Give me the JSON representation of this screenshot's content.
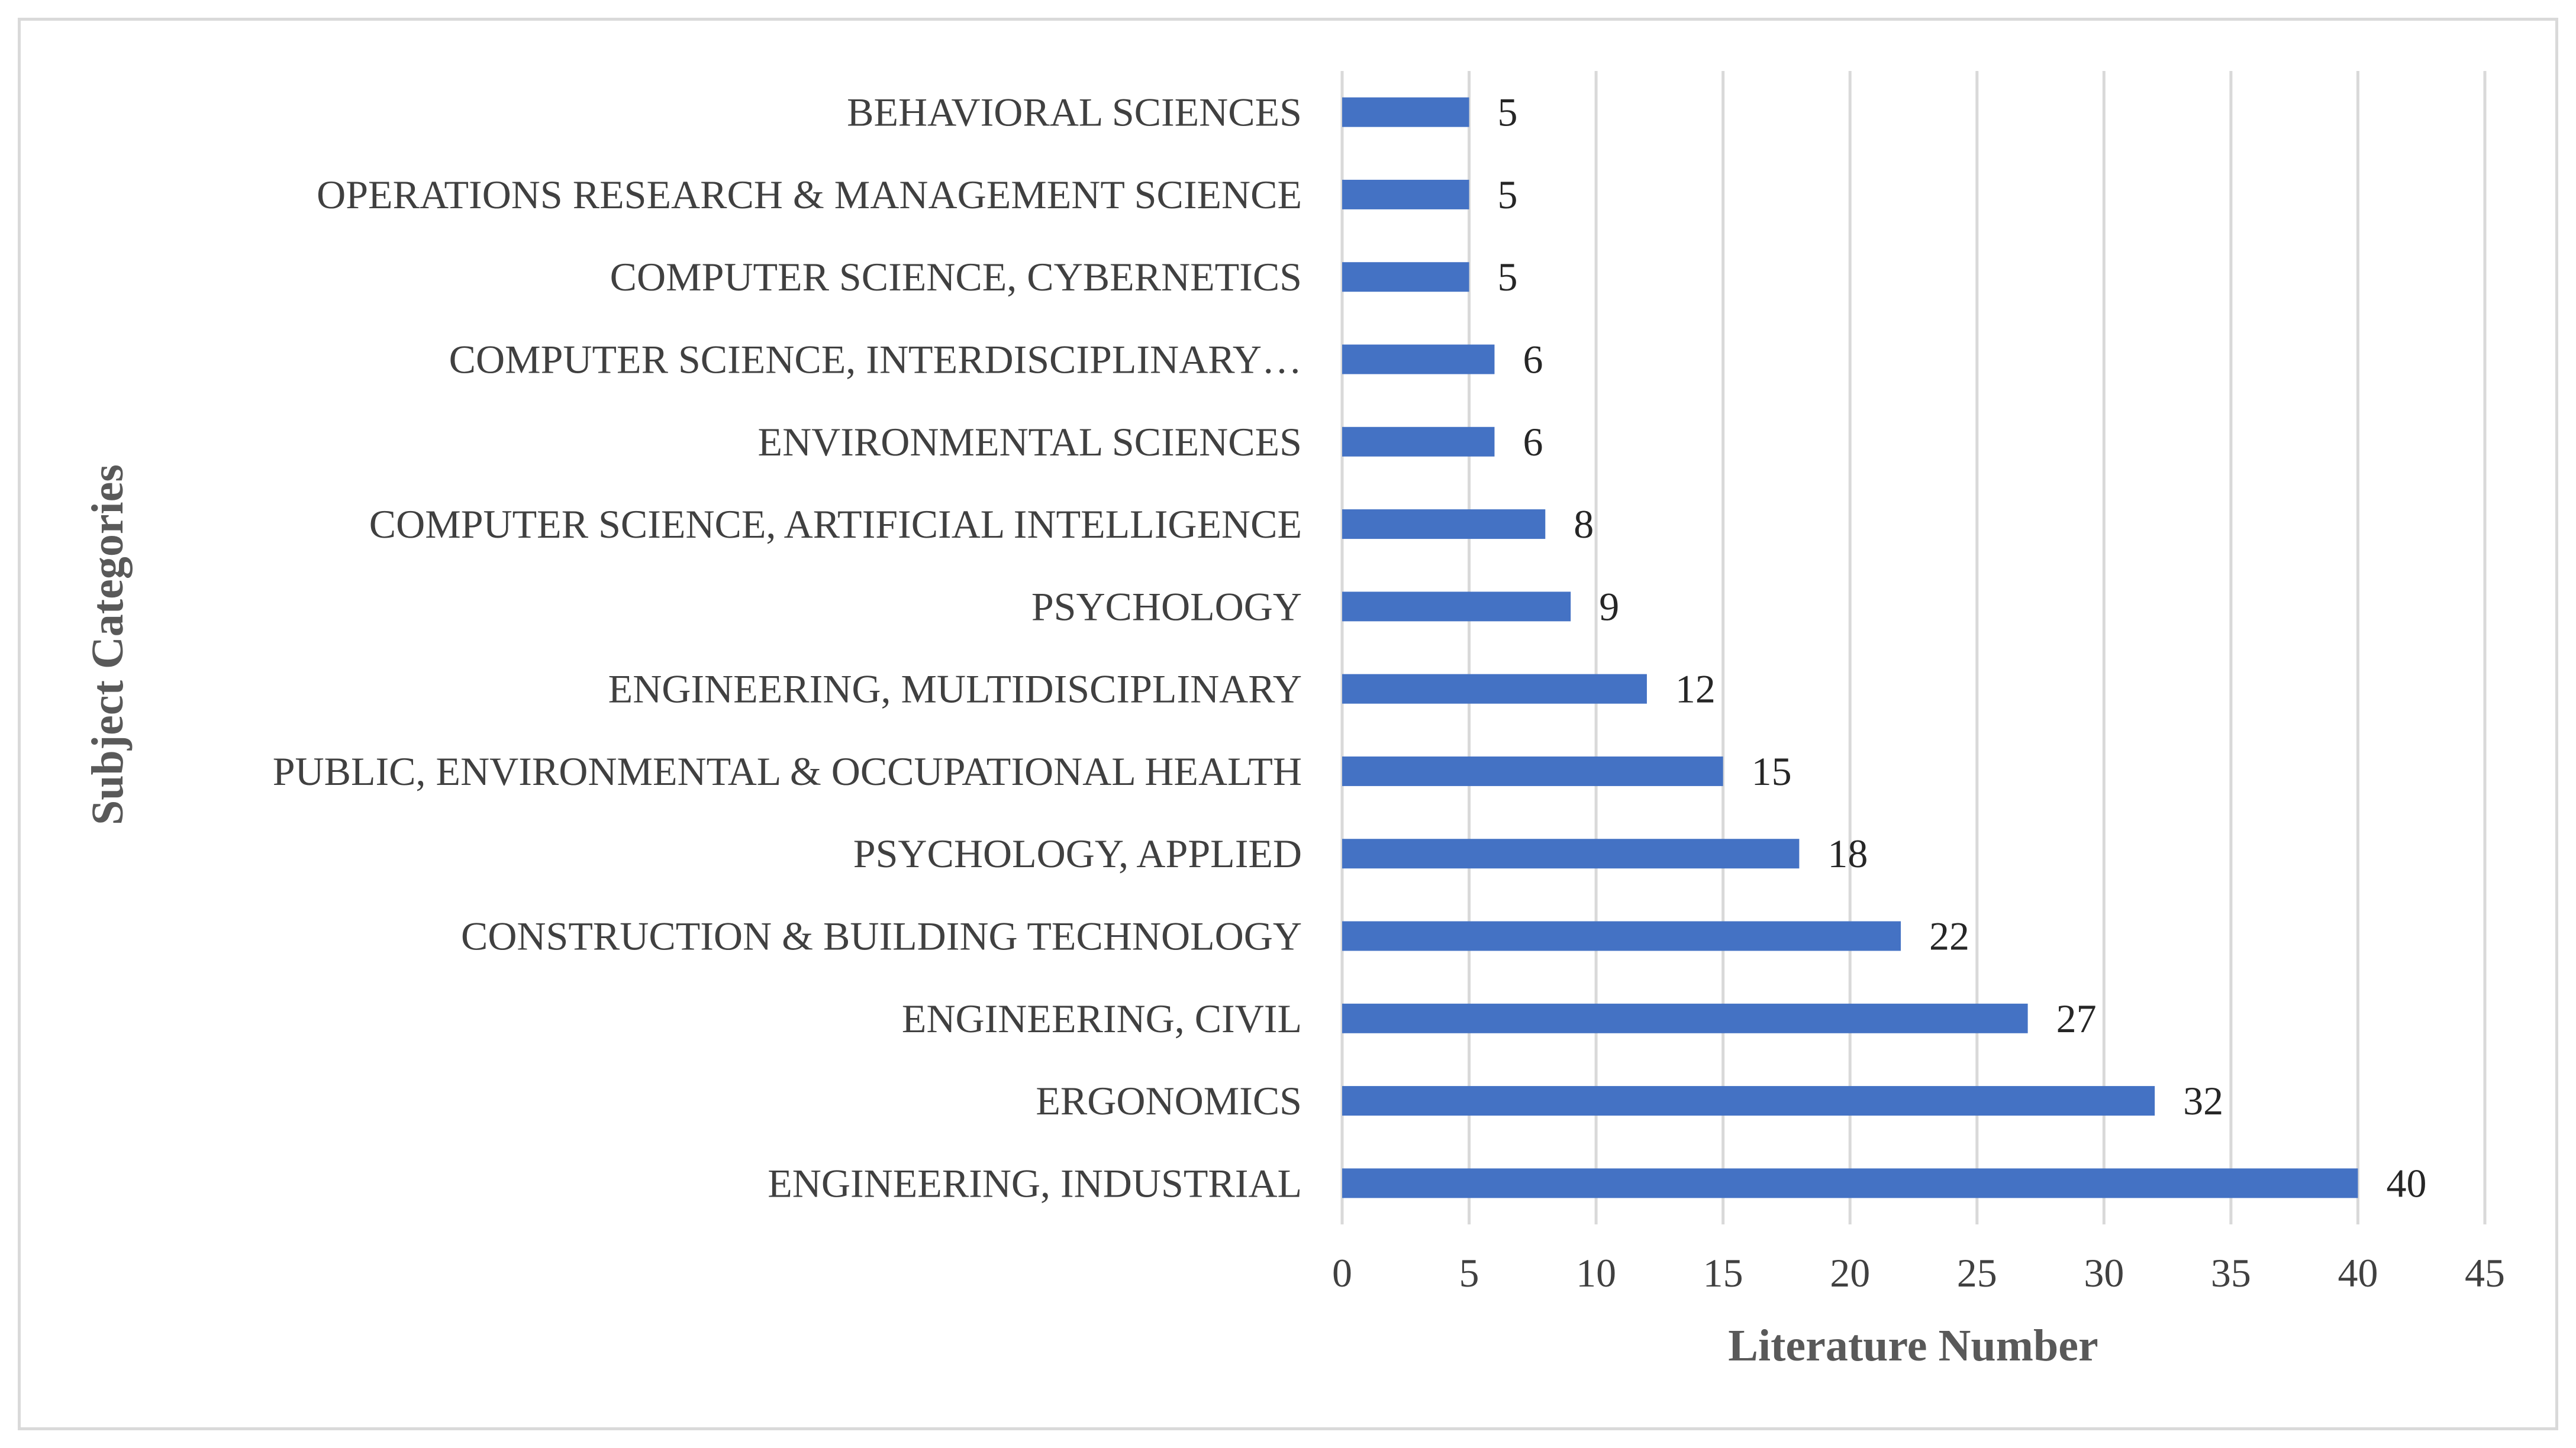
{
  "chart_data": {
    "type": "bar",
    "orientation": "horizontal",
    "title": "",
    "xlabel": "Literature Number",
    "ylabel": "Subject Categories",
    "xlim": [
      0,
      45
    ],
    "xticks": [
      "0",
      "5",
      "10",
      "15",
      "20",
      "25",
      "30",
      "35",
      "40",
      "45"
    ],
    "grid": true,
    "bar_color": "#4472c4",
    "categories": [
      "BEHAVIORAL SCIENCES",
      "OPERATIONS RESEARCH & MANAGEMENT SCIENCE",
      "COMPUTER SCIENCE, CYBERNETICS",
      "COMPUTER SCIENCE, INTERDISCIPLINARY…",
      "ENVIRONMENTAL SCIENCES",
      "COMPUTER SCIENCE, ARTIFICIAL INTELLIGENCE",
      "PSYCHOLOGY",
      "ENGINEERING, MULTIDISCIPLINARY",
      "PUBLIC, ENVIRONMENTAL & OCCUPATIONAL HEALTH",
      "PSYCHOLOGY, APPLIED",
      "CONSTRUCTION & BUILDING TECHNOLOGY",
      "ENGINEERING, CIVIL",
      "ERGONOMICS",
      "ENGINEERING, INDUSTRIAL"
    ],
    "values": [
      5,
      5,
      5,
      6,
      6,
      8,
      9,
      12,
      15,
      18,
      22,
      27,
      32,
      40
    ],
    "data_labels": [
      "5",
      "5",
      "5",
      "6",
      "6",
      "8",
      "9",
      "12",
      "15",
      "18",
      "22",
      "27",
      "32",
      "40"
    ]
  }
}
